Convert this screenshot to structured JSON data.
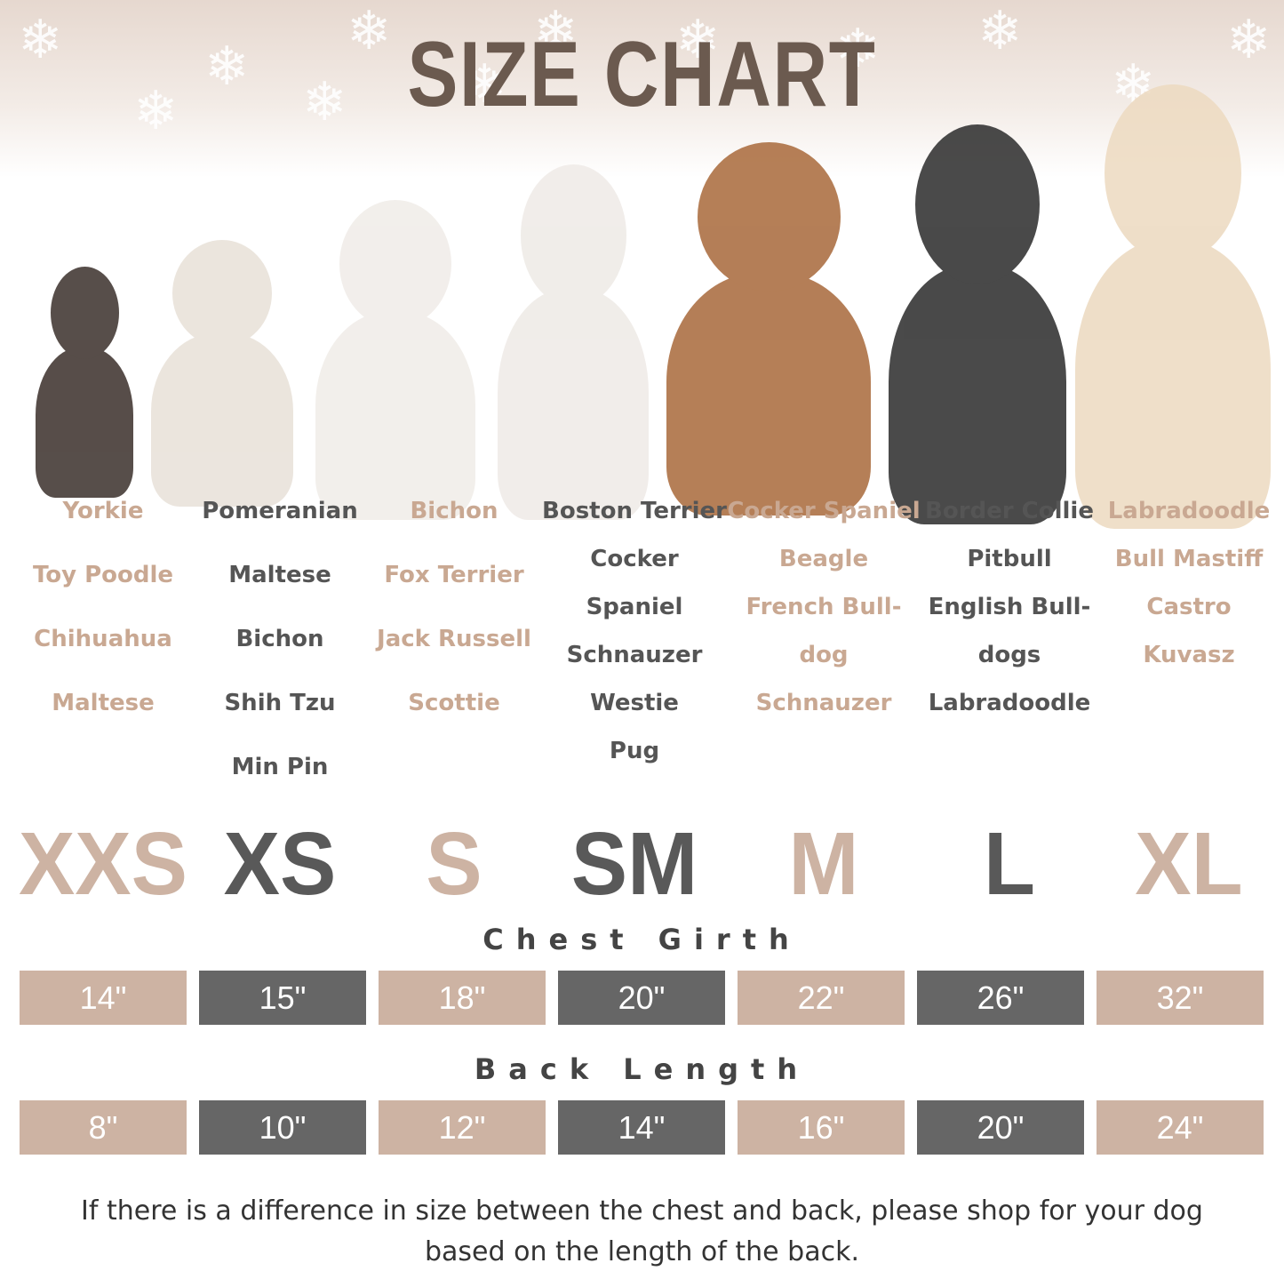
{
  "title": "SIZE CHART",
  "colors": {
    "tan": "#cdb3a3",
    "gray": "#666666",
    "title": "#6b5a4f"
  },
  "columns": [
    {
      "header": "Yorkie",
      "breeds": [
        "Toy Poodle",
        "Chihuahua",
        "Maltese"
      ],
      "size": "XXS",
      "chest": "14\"",
      "back": "8\"",
      "tone": "tan"
    },
    {
      "header": "Pomeranian",
      "breeds": [
        "Maltese",
        "Bichon",
        "Shih Tzu",
        "Min Pin"
      ],
      "size": "XS",
      "chest": "15\"",
      "back": "10\"",
      "tone": "gray"
    },
    {
      "header": "Bichon",
      "breeds": [
        "Fox Terrier",
        "Jack Russell",
        "Scottie"
      ],
      "size": "S",
      "chest": "18\"",
      "back": "12\"",
      "tone": "tan"
    },
    {
      "header": "Boston Terrier",
      "breeds": [
        "Cocker",
        "Spaniel",
        "Schnauzer",
        "Westie",
        "Pug"
      ],
      "size": "SM",
      "chest": "20\"",
      "back": "14\"",
      "tone": "gray"
    },
    {
      "header": "Cocker Spaniel",
      "breeds": [
        "Beagle",
        "French Bull-",
        "dog",
        "Schnauzer"
      ],
      "size": "M",
      "chest": "22\"",
      "back": "16\"",
      "tone": "tan"
    },
    {
      "header": "Border Collie",
      "breeds": [
        "Pitbull",
        "English Bull-",
        "dogs",
        "Labradoodle"
      ],
      "size": "L",
      "chest": "26\"",
      "back": "20\"",
      "tone": "gray"
    },
    {
      "header": "Labradoodle",
      "breeds": [
        "Bull Mastiff",
        "Castro",
        "Kuvasz"
      ],
      "size": "XL",
      "chest": "32\"",
      "back": "24\"",
      "tone": "tan"
    }
  ],
  "chest_label": "Chest Girth",
  "back_label": "Back Length",
  "note_line1": "If there is a difference in size between the chest and back, please shop for your dog",
  "note_line2": "based on the length of the back."
}
